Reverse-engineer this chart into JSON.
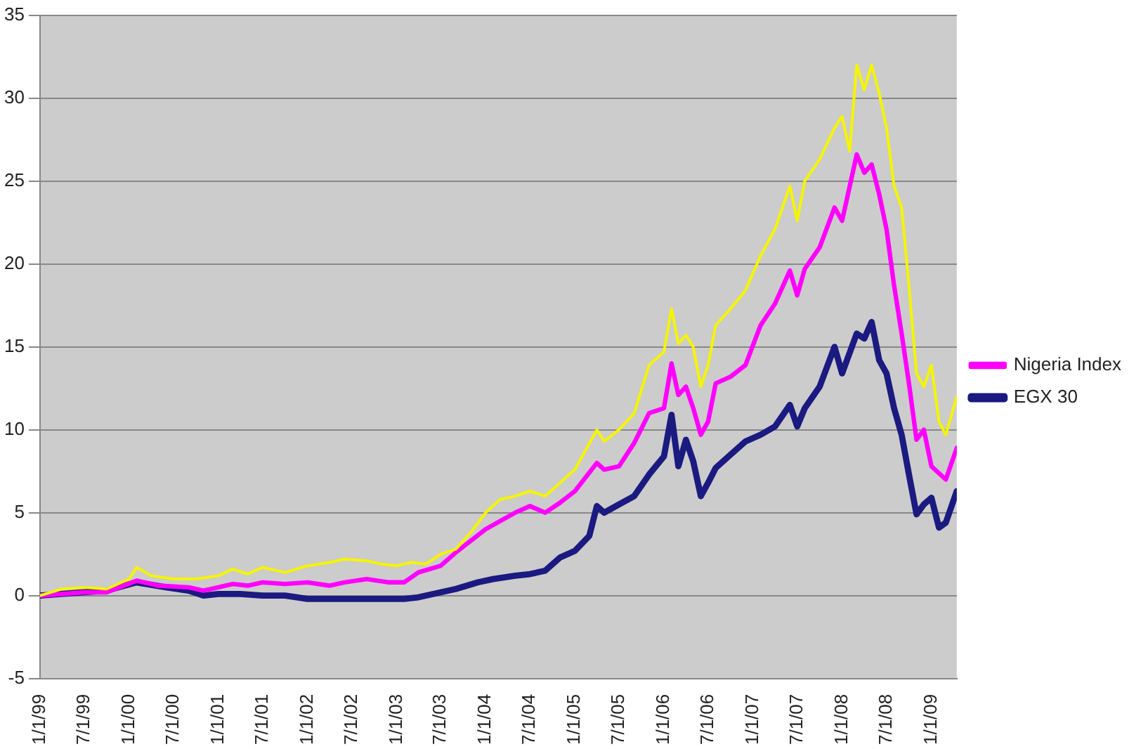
{
  "chart_data": {
    "type": "line",
    "legend": "right",
    "grid": "y",
    "marker": "none",
    "line_style": "solid",
    "xlim": [
      "1999-01-01",
      "2009-04-15"
    ],
    "xticks": [
      {
        "value": "1999-01-01",
        "label": "1/1/99"
      },
      {
        "value": "1999-07-01",
        "label": "7/1/99"
      },
      {
        "value": "2000-01-01",
        "label": "1/1/00"
      },
      {
        "value": "2000-07-01",
        "label": "7/1/00"
      },
      {
        "value": "2001-01-01",
        "label": "1/1/01"
      },
      {
        "value": "2001-07-01",
        "label": "7/1/01"
      },
      {
        "value": "2002-01-01",
        "label": "1/1/02"
      },
      {
        "value": "2002-07-01",
        "label": "7/1/02"
      },
      {
        "value": "2003-01-01",
        "label": "1/1/03"
      },
      {
        "value": "2003-07-01",
        "label": "7/1/03"
      },
      {
        "value": "2004-01-01",
        "label": "1/1/04"
      },
      {
        "value": "2004-07-01",
        "label": "7/1/04"
      },
      {
        "value": "2005-01-01",
        "label": "1/1/05"
      },
      {
        "value": "2005-07-01",
        "label": "7/1/05"
      },
      {
        "value": "2006-01-01",
        "label": "1/1/06"
      },
      {
        "value": "2006-07-01",
        "label": "7/1/06"
      },
      {
        "value": "2007-01-01",
        "label": "1/1/07"
      },
      {
        "value": "2007-07-01",
        "label": "7/1/07"
      },
      {
        "value": "2008-01-01",
        "label": "1/1/08"
      },
      {
        "value": "2008-07-01",
        "label": "7/1/08"
      },
      {
        "value": "2009-01-01",
        "label": "1/1/09"
      }
    ],
    "ylim": [
      -5,
      35
    ],
    "yticks": [
      -5,
      0,
      5,
      10,
      15,
      20,
      25,
      30,
      35
    ],
    "series": [
      {
        "color": "#f5f500",
        "x": [
          "1999-01-01",
          "1999-04-01",
          "1999-07-01",
          "1999-10-01",
          "2000-01-01",
          "2000-02-01",
          "2000-04-01",
          "2000-07-01",
          "2000-10-01",
          "2001-01-01",
          "2001-03-01",
          "2001-05-01",
          "2001-07-01",
          "2001-10-01",
          "2002-01-01",
          "2002-04-01",
          "2002-06-01",
          "2002-09-01",
          "2002-11-01",
          "2003-01-01",
          "2003-03-01",
          "2003-05-01",
          "2003-07-01",
          "2003-09-01",
          "2003-11-01",
          "2004-01-01",
          "2004-03-01",
          "2004-05-01",
          "2004-07-01",
          "2004-09-01",
          "2004-11-01",
          "2005-01-01",
          "2005-04-01",
          "2005-05-01",
          "2005-07-01",
          "2005-09-01",
          "2005-11-01",
          "2006-01-01",
          "2006-02-01",
          "2006-03-01",
          "2006-04-01",
          "2006-05-01",
          "2006-06-01",
          "2006-07-01",
          "2006-08-01",
          "2006-10-01",
          "2006-12-01",
          "2007-02-01",
          "2007-04-01",
          "2007-06-01",
          "2007-07-01",
          "2007-08-01",
          "2007-10-01",
          "2007-12-01",
          "2008-01-01",
          "2008-02-01",
          "2008-03-01",
          "2008-04-01",
          "2008-05-01",
          "2008-06-01",
          "2008-07-01",
          "2008-08-01",
          "2008-09-01",
          "2008-10-01",
          "2008-11-01",
          "2008-12-01",
          "2009-01-01",
          "2009-02-01",
          "2009-03-01",
          "2009-04-15"
        ],
        "values": [
          0,
          0.4,
          0.5,
          0.4,
          1.0,
          1.7,
          1.2,
          1.0,
          1.0,
          1.2,
          1.6,
          1.3,
          1.7,
          1.4,
          1.8,
          2.0,
          2.2,
          2.1,
          1.9,
          1.8,
          2.0,
          1.9,
          2.5,
          2.8,
          3.8,
          5.0,
          5.8,
          6.0,
          6.3,
          6.0,
          6.8,
          7.6,
          10.0,
          9.3,
          10.0,
          11.0,
          13.9,
          14.7,
          17.3,
          15.2,
          15.7,
          15.0,
          12.6,
          13.9,
          16.3,
          17.3,
          18.4,
          20.5,
          22.1,
          24.7,
          22.6,
          25.0,
          26.3,
          28.2,
          28.9,
          26.8,
          32.0,
          30.5,
          32.0,
          30.3,
          28.2,
          24.7,
          23.4,
          18.7,
          13.4,
          12.6,
          13.9,
          10.5,
          9.7,
          12.0
        ]
      },
      {
        "name": "Nigeria Index",
        "color": "#ff00ff",
        "x": [
          "1999-01-01",
          "1999-07-01",
          "1999-10-01",
          "2000-02-01",
          "2000-05-01",
          "2000-09-01",
          "2000-11-01",
          "2001-01-01",
          "2001-03-01",
          "2001-05-01",
          "2001-07-01",
          "2001-10-01",
          "2002-01-01",
          "2002-04-01",
          "2002-06-01",
          "2002-09-01",
          "2002-12-01",
          "2003-02-01",
          "2003-04-01",
          "2003-07-01",
          "2003-09-01",
          "2003-11-01",
          "2004-01-01",
          "2004-03-01",
          "2004-05-01",
          "2004-07-01",
          "2004-09-01",
          "2004-11-01",
          "2005-01-01",
          "2005-04-01",
          "2005-05-01",
          "2005-07-01",
          "2005-09-01",
          "2005-11-01",
          "2006-01-01",
          "2006-02-01",
          "2006-03-01",
          "2006-04-01",
          "2006-05-01",
          "2006-06-01",
          "2006-07-01",
          "2006-08-01",
          "2006-10-01",
          "2006-12-01",
          "2007-02-01",
          "2007-04-01",
          "2007-06-01",
          "2007-07-01",
          "2007-08-01",
          "2007-10-01",
          "2007-12-01",
          "2008-01-01",
          "2008-03-01",
          "2008-04-01",
          "2008-05-01",
          "2008-06-01",
          "2008-07-01",
          "2008-08-01",
          "2008-09-01",
          "2008-10-01",
          "2008-11-01",
          "2008-12-01",
          "2009-01-01",
          "2009-03-01",
          "2009-04-15"
        ],
        "values": [
          0,
          0.2,
          0.2,
          0.9,
          0.6,
          0.5,
          0.3,
          0.5,
          0.7,
          0.6,
          0.8,
          0.7,
          0.8,
          0.6,
          0.8,
          1.0,
          0.8,
          0.8,
          1.4,
          1.8,
          2.6,
          3.3,
          4.0,
          4.5,
          5.0,
          5.4,
          5.0,
          5.6,
          6.3,
          8.0,
          7.6,
          7.8,
          9.2,
          11.0,
          11.3,
          14.0,
          12.1,
          12.6,
          11.3,
          9.7,
          10.5,
          12.8,
          13.2,
          13.9,
          16.3,
          17.6,
          19.6,
          18.1,
          19.7,
          21.0,
          23.4,
          22.6,
          26.6,
          25.5,
          26.0,
          24.2,
          22.1,
          18.7,
          15.8,
          12.8,
          9.4,
          10.0,
          7.8,
          7.0,
          8.9
        ]
      },
      {
        "name": "EGX 30",
        "color": "#1a1a80",
        "x": [
          "1999-01-01",
          "1999-07-01",
          "1999-10-01",
          "2000-02-01",
          "2000-06-01",
          "2000-09-01",
          "2000-11-01",
          "2001-01-01",
          "2001-04-01",
          "2001-07-01",
          "2001-10-01",
          "2002-01-01",
          "2002-06-01",
          "2002-12-01",
          "2003-02-01",
          "2003-04-01",
          "2003-07-01",
          "2003-09-01",
          "2003-12-01",
          "2004-02-01",
          "2004-05-01",
          "2004-07-01",
          "2004-09-01",
          "2004-11-01",
          "2005-01-01",
          "2005-03-01",
          "2005-04-01",
          "2005-05-01",
          "2005-07-01",
          "2005-09-01",
          "2005-11-01",
          "2006-01-01",
          "2006-02-01",
          "2006-03-01",
          "2006-04-01",
          "2006-05-01",
          "2006-06-01",
          "2006-07-01",
          "2006-08-01",
          "2006-10-01",
          "2006-12-01",
          "2007-02-01",
          "2007-04-01",
          "2007-06-01",
          "2007-07-01",
          "2007-08-01",
          "2007-10-01",
          "2007-12-01",
          "2008-01-01",
          "2008-03-01",
          "2008-04-01",
          "2008-05-01",
          "2008-06-01",
          "2008-07-01",
          "2008-08-01",
          "2008-09-01",
          "2008-10-01",
          "2008-11-01",
          "2008-12-01",
          "2009-01-01",
          "2009-02-01",
          "2009-03-01",
          "2009-04-15"
        ],
        "values": [
          0,
          0.2,
          0.3,
          0.8,
          0.5,
          0.3,
          0,
          0.1,
          0.1,
          0,
          0,
          -0.2,
          -0.2,
          -0.2,
          -0.2,
          -0.1,
          0.2,
          0.4,
          0.8,
          1.0,
          1.2,
          1.3,
          1.5,
          2.3,
          2.7,
          3.6,
          5.4,
          5.0,
          5.5,
          6.0,
          7.3,
          8.4,
          10.9,
          7.8,
          9.4,
          8.1,
          6.0,
          6.8,
          7.7,
          8.5,
          9.3,
          9.7,
          10.2,
          11.5,
          10.2,
          11.3,
          12.6,
          15.0,
          13.4,
          15.8,
          15.5,
          16.5,
          14.2,
          13.4,
          11.3,
          9.7,
          7.3,
          4.9,
          5.5,
          5.9,
          4.1,
          4.4,
          6.3
        ]
      }
    ]
  }
}
